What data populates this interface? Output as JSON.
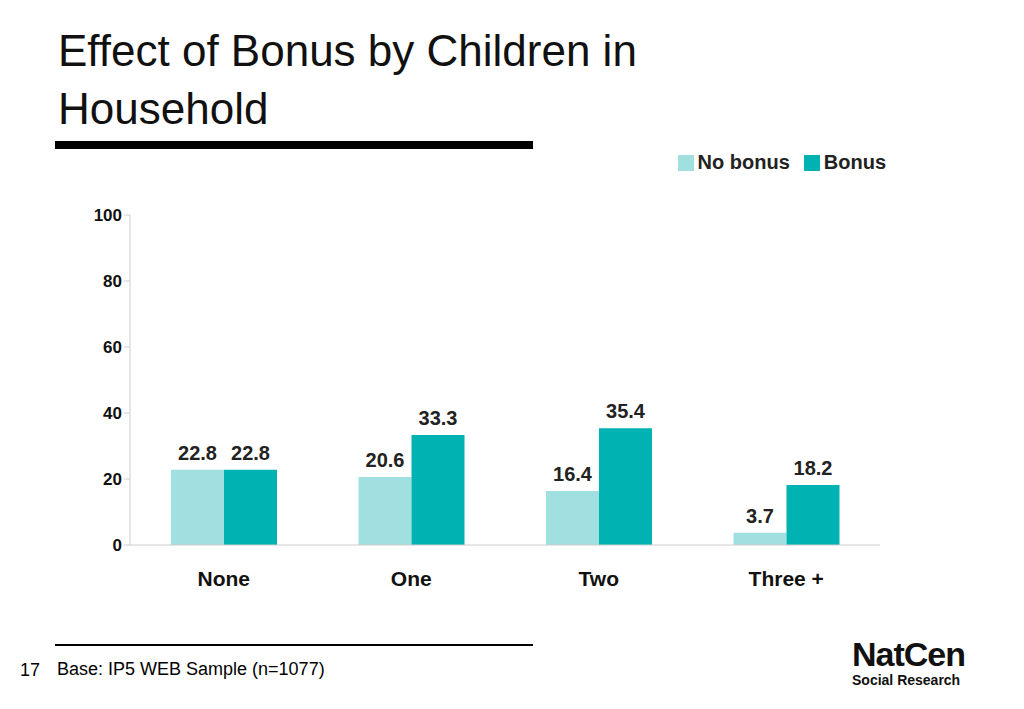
{
  "chart_data": {
    "type": "bar",
    "title": "Effect of Bonus by Children in Household",
    "categories": [
      "None",
      "One",
      "Two",
      "Three +"
    ],
    "series": [
      {
        "name": "No bonus",
        "color": "#a0e0e0",
        "values": [
          22.8,
          20.6,
          16.4,
          3.7
        ]
      },
      {
        "name": "Bonus",
        "color": "#00b2b2",
        "values": [
          22.8,
          33.3,
          35.4,
          18.2
        ]
      }
    ],
    "ylim": [
      0,
      100
    ],
    "yticks": [
      0,
      20,
      40,
      60,
      80,
      100
    ],
    "grid": false,
    "legend": "top-right",
    "data_labels": true,
    "page_number": "17",
    "footnote": "Base: IP5 WEB Sample (n=1077)",
    "logo": [
      "NatCen",
      "Social Research"
    ]
  }
}
